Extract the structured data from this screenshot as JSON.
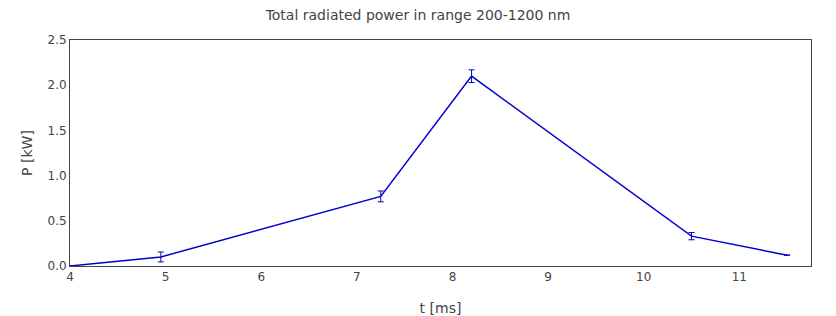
{
  "chart_data": {
    "type": "line",
    "title": "Total radiated power in range 200-1200 nm",
    "xlabel": "t [ms]",
    "ylabel": "P [kW]",
    "x": [
      4.0,
      4.95,
      7.25,
      8.2,
      10.5,
      11.5
    ],
    "values": [
      0.0,
      0.1,
      0.77,
      2.1,
      0.33,
      0.12
    ],
    "yerr": [
      0.0,
      0.055,
      0.06,
      0.07,
      0.04,
      0.0
    ],
    "color": "#0000cc",
    "xlim": [
      4.0,
      11.75
    ],
    "ylim": [
      0.0,
      2.5
    ],
    "xticks": [
      4,
      5,
      6,
      7,
      8,
      9,
      10,
      11
    ],
    "yticks": [
      {
        "value": 0.0,
        "label": "0.0"
      },
      0.5,
      {
        "value": 1.0,
        "label": "1.0"
      },
      1.5,
      {
        "value": 2.0,
        "label": "2.0"
      },
      2.5
    ],
    "grid": false
  }
}
